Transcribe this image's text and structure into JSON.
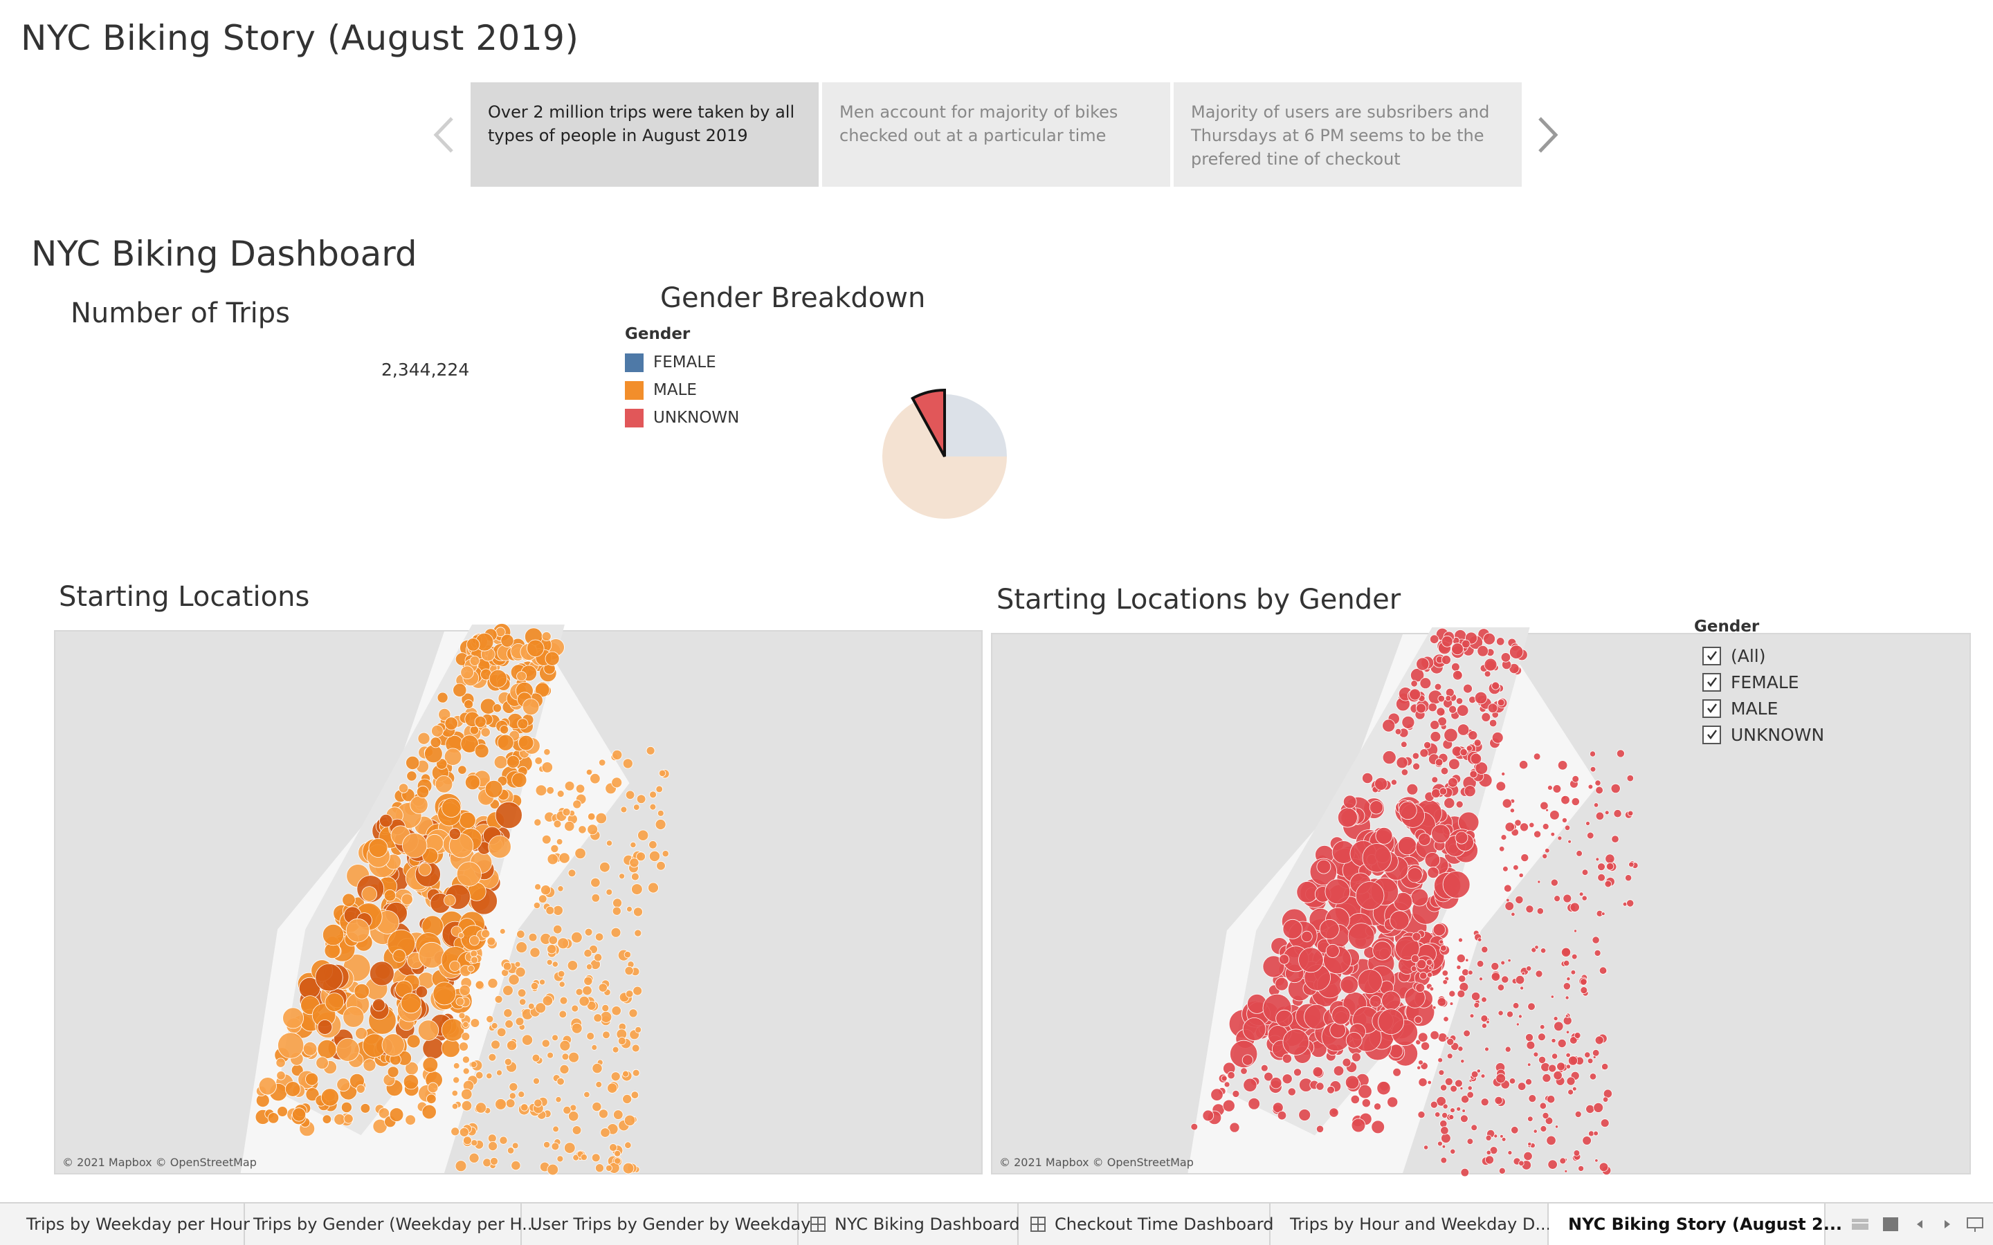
{
  "story": {
    "title": "NYC Biking Story (August 2019)",
    "points": [
      {
        "text": "Over 2 million trips were taken by all types of people in August 2019",
        "active": true
      },
      {
        "text": "Men account for majority of bikes checked out at a particular time",
        "active": false
      },
      {
        "text": "Majority of users are subsribers and Thursdays at 6 PM seems to be the prefered tine of checkout",
        "active": false
      }
    ]
  },
  "dashboard": {
    "title": "NYC Biking Dashboard",
    "trips": {
      "title": "Number of Trips",
      "value": "2,344,224"
    },
    "gender_breakdown": {
      "title": "Gender Breakdown",
      "legend_title": "Gender",
      "legend": [
        {
          "label": "FEMALE",
          "color": "#4e79a7"
        },
        {
          "label": "MALE",
          "color": "#f28e2b"
        },
        {
          "label": "UNKNOWN",
          "color": "#e15759"
        }
      ]
    },
    "starting_locations": {
      "title": "Starting Locations",
      "credit": "© 2021 Mapbox © OpenStreetMap"
    },
    "starting_by_gender": {
      "title": "Starting Locations by Gender",
      "credit": "© 2021 Mapbox © OpenStreetMap",
      "filter_title": "Gender",
      "filters": [
        {
          "label": "(All)",
          "checked": true
        },
        {
          "label": "FEMALE",
          "checked": true
        },
        {
          "label": "MALE",
          "checked": true
        },
        {
          "label": "UNKNOWN",
          "checked": true
        }
      ]
    }
  },
  "chart_data": {
    "type": "pie",
    "title": "Gender Breakdown",
    "categories": [
      "FEMALE",
      "MALE",
      "UNKNOWN"
    ],
    "values": [
      25,
      67,
      8
    ],
    "colors": [
      "#4e79a7",
      "#f28e2b",
      "#e15759"
    ],
    "highlighted": "UNKNOWN"
  },
  "tabs": [
    {
      "label": "Trips by Weekday per Hour",
      "icon": "none",
      "active": false
    },
    {
      "label": "Trips by Gender (Weekday per H...",
      "icon": "none",
      "active": false
    },
    {
      "label": "User Trips by Gender by Weekday",
      "icon": "none",
      "active": false
    },
    {
      "label": "NYC Biking Dashboard",
      "icon": "dashboard-icon",
      "active": false
    },
    {
      "label": "Checkout Time Dashboard",
      "icon": "dashboard-icon",
      "active": false
    },
    {
      "label": "Trips by Hour and Weekday D...",
      "icon": "dashboard-icon",
      "active": false
    },
    {
      "label": "NYC Biking Story (August 2...",
      "icon": "story-icon",
      "active": true
    }
  ],
  "colors": {
    "map_orange_light": "#f7a24a",
    "map_orange_mid": "#f08a24",
    "map_orange_dark": "#d35a15",
    "map_red": "#e04a4f",
    "map_background": "#ebebeb",
    "map_land": "#e2e2e2"
  }
}
